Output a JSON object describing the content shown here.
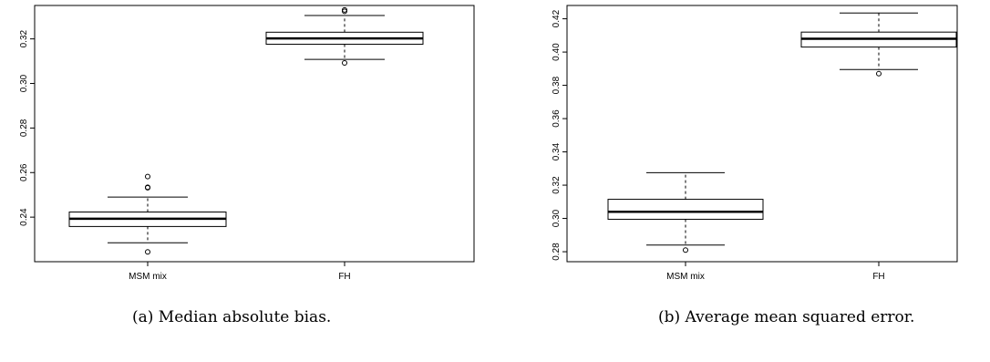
{
  "chart_data": [
    {
      "type": "boxplot",
      "title": "",
      "xlabel": "",
      "ylabel": "",
      "caption": "(a) Median absolute bias.",
      "categories": [
        "MSM mix",
        "FH"
      ],
      "yticks": [
        0.24,
        0.26,
        0.28,
        0.3,
        0.32
      ],
      "ytick_labels": [
        "0.24",
        "0.26",
        "0.28",
        "0.30",
        "0.32"
      ],
      "ylim": [
        0.22,
        0.335
      ],
      "grid": false,
      "legend": "none",
      "boxes": [
        {
          "name": "MSM mix",
          "whisker_low": 0.2285,
          "q1": 0.2358,
          "median": 0.2393,
          "q3": 0.2423,
          "whisker_high": 0.249,
          "outliers": [
            0.2244,
            0.2532,
            0.2534,
            0.2582
          ]
        },
        {
          "name": "FH",
          "whisker_low": 0.3108,
          "q1": 0.3176,
          "median": 0.3202,
          "q3": 0.323,
          "whisker_high": 0.3305,
          "outliers": [
            0.3092,
            0.3324,
            0.333
          ]
        }
      ]
    },
    {
      "type": "boxplot",
      "title": "",
      "xlabel": "",
      "ylabel": "",
      "caption": "(b) Average mean squared error.",
      "categories": [
        "MSM mix",
        "FH"
      ],
      "yticks": [
        0.28,
        0.3,
        0.32,
        0.34,
        0.36,
        0.38,
        0.4,
        0.42
      ],
      "ytick_labels": [
        "0.28",
        "0.30",
        "0.32",
        "0.34",
        "0.36",
        "0.38",
        "0.40",
        "0.42"
      ],
      "ylim": [
        0.274,
        0.428
      ],
      "grid": false,
      "legend": "none",
      "boxes": [
        {
          "name": "MSM mix",
          "whisker_low": 0.284,
          "q1": 0.2995,
          "median": 0.304,
          "q3": 0.3115,
          "whisker_high": 0.3275,
          "outliers": [
            0.281
          ]
        },
        {
          "name": "FH",
          "whisker_low": 0.3895,
          "q1": 0.403,
          "median": 0.408,
          "q3": 0.412,
          "whisker_high": 0.4235,
          "outliers": [
            0.387
          ]
        }
      ]
    }
  ]
}
